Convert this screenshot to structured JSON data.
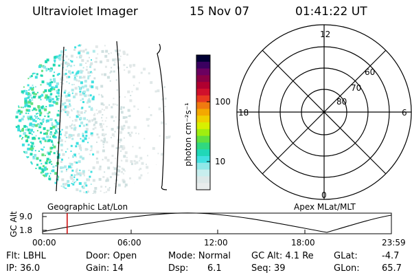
{
  "header": {
    "instrument": "Ultraviolet Imager",
    "date": "15 Nov 07",
    "time": "01:41:22 UT"
  },
  "colorbar": {
    "unit_label": "photon cm⁻²s⁻¹",
    "ticks": [
      "100",
      "10"
    ],
    "colors": [
      "#000033",
      "#3a0060",
      "#6b0060",
      "#8a0045",
      "#b00030",
      "#d0102c",
      "#e83a20",
      "#f07a10",
      "#f4a800",
      "#f0d000",
      "#d8f000",
      "#a0ee10",
      "#60e040",
      "#30d880",
      "#20d8b8",
      "#40e0e0",
      "#90e8e8",
      "#c8eeee",
      "#dde8e8",
      "#e8ecec"
    ]
  },
  "polar_plot": {
    "mlt_labels": [
      "12",
      "18",
      "6",
      "0"
    ],
    "lat_labels": [
      "60",
      "70",
      "80"
    ]
  },
  "timeline": {
    "left_label": "Geographic Lat/Lon",
    "right_label": "Apex MLat/MLT",
    "axis_title": "GC Alt",
    "y_ticks": [
      "9.0",
      "1.8"
    ],
    "x_ticks": [
      "00:00",
      "06:00",
      "12:00",
      "18:00",
      "23:59"
    ],
    "marker_color": "#cc0000",
    "marker_time_hours": 1.689
  },
  "info": {
    "filter": "Flt: LBHL",
    "ip": "IP: 36.0",
    "door": "Door: Open",
    "gain": "Gain: 14",
    "mode": "Mode: Normal",
    "dsp_label": "Dsp:",
    "dsp_value": "6.1",
    "gc_alt": "GC Alt: 4.1 Re",
    "seq": "Seq: 39",
    "glat_label": "GLat:",
    "glat_value": "-4.7",
    "glon_label": "GLon:",
    "glon_value": "65.7"
  }
}
